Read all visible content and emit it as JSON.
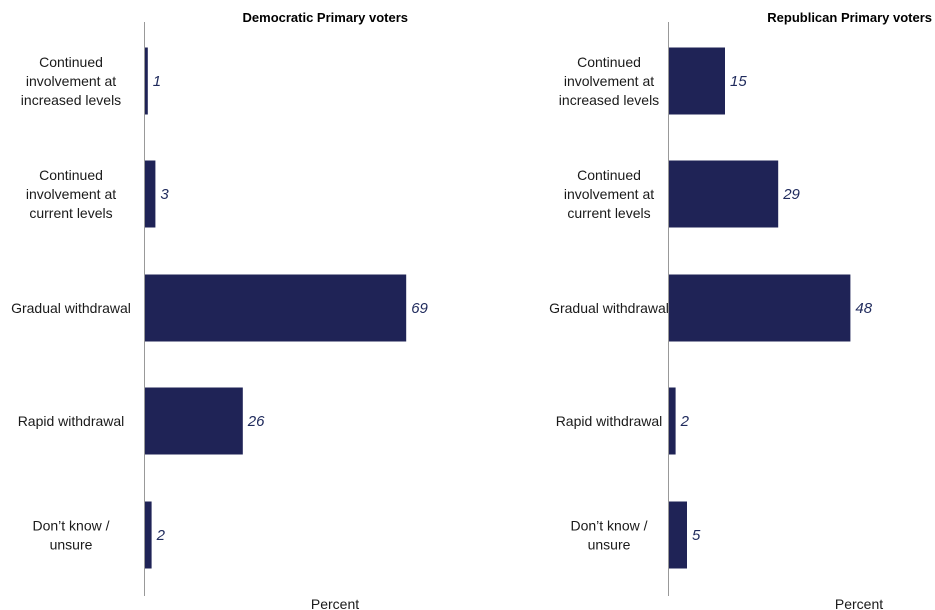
{
  "chart_data": [
    {
      "type": "bar",
      "orientation": "horizontal",
      "title": "Democratic Primary voters",
      "xlabel": "Percent",
      "categories": [
        "Continued involvement at increased levels",
        "Continued involvement at current levels",
        "Gradual withdrawal",
        "Rapid withdrawal",
        "Don't know / unsure"
      ],
      "category_lines": [
        [
          "Continued",
          "involvement at",
          "increased levels"
        ],
        [
          "Continued",
          "involvement at",
          "current levels"
        ],
        [
          "Gradual withdrawal"
        ],
        [
          "Rapid withdrawal"
        ],
        [
          "Don’t know /",
          "unsure"
        ]
      ],
      "values": [
        1,
        3,
        69,
        26,
        2
      ],
      "xlim": [
        0,
        100
      ],
      "bar_color": "#1f2356",
      "grid": false,
      "legend": "none"
    },
    {
      "type": "bar",
      "orientation": "horizontal",
      "title": "Republican Primary voters",
      "xlabel": "Percent",
      "categories": [
        "Continued involvement at increased levels",
        "Continued involvement at current levels",
        "Gradual withdrawal",
        "Rapid withdrawal",
        "Don't know / unsure"
      ],
      "category_lines": [
        [
          "Continued",
          "involvement at",
          "increased levels"
        ],
        [
          "Continued",
          "involvement at",
          "current levels"
        ],
        [
          "Gradual withdrawal"
        ],
        [
          "Rapid withdrawal"
        ],
        [
          "Don’t know /",
          "unsure"
        ]
      ],
      "values": [
        15,
        29,
        48,
        2,
        5
      ],
      "xlim": [
        0,
        100
      ],
      "bar_color": "#1f2356",
      "grid": false,
      "legend": "none"
    }
  ]
}
